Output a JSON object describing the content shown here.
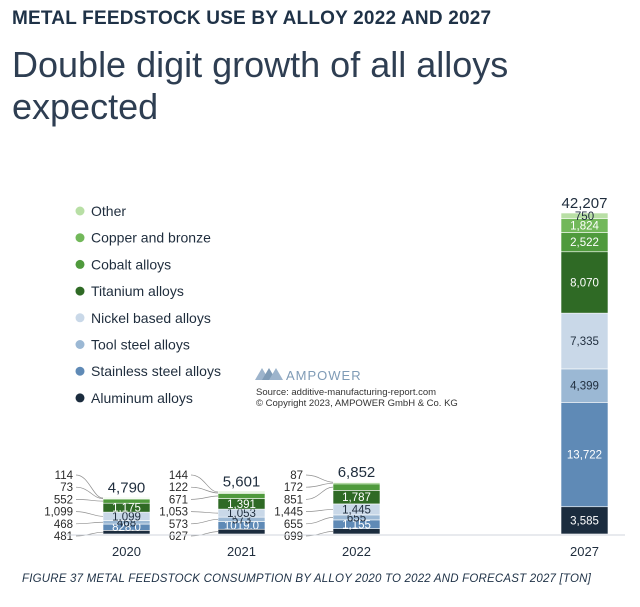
{
  "header": {
    "title": "METAL FEEDSTOCK USE BY ALLOY 2022 AND 2027",
    "subtitle": "Double digit growth of all alloys expected"
  },
  "caption": "FIGURE 37 METAL FEEDSTOCK CONSUMPTION BY ALLOY 2020 TO 2022 AND FORECAST 2027 [TON]",
  "watermark": {
    "brand": "AMPOWER",
    "source": "Source: additive-manufacturing-report.com",
    "copyright": "© Copyright 2023, AMPOWER GmbH & Co. KG"
  },
  "chart_data": {
    "type": "bar",
    "stacked": true,
    "categories": [
      "2020",
      "2021",
      "2022",
      "2027"
    ],
    "legend_position": "left",
    "grid": false,
    "ylim": [
      0,
      42207
    ],
    "totals": [
      "4,790",
      "5,601",
      "6,852",
      "42,207"
    ],
    "series": [
      {
        "name": "Aluminum alloys",
        "color": "#1b2c3e",
        "values": [
          481,
          627,
          699,
          3585
        ],
        "labels": [
          "481",
          "627",
          "699",
          "3,585"
        ]
      },
      {
        "name": "Stainless steel alloys",
        "color": "#5f8ab6",
        "values": [
          828,
          1019,
          1155,
          13722
        ],
        "labels": [
          "828.0",
          "1019.0",
          "1,155",
          "13,722"
        ]
      },
      {
        "name": "Tool steel alloys",
        "color": "#9bb8d4",
        "values": [
          468,
          573,
          655,
          4399
        ],
        "labels": [
          "468",
          "573",
          "655",
          "4,399"
        ]
      },
      {
        "name": "Nickel based alloys",
        "color": "#c9d8e8",
        "values": [
          1099,
          1053,
          1445,
          7335
        ],
        "labels": [
          "1,099",
          "1,053",
          "1,445",
          "7,335"
        ]
      },
      {
        "name": "Titanium alloys",
        "color": "#2f6a25",
        "values": [
          1175,
          1391,
          1787,
          8070
        ],
        "labels": [
          "1,175",
          "1,391",
          "1,787",
          "8,070"
        ]
      },
      {
        "name": "Cobalt alloys",
        "color": "#4f9a3c",
        "values": [
          552,
          671,
          851,
          2522
        ],
        "labels": [
          "552",
          "671",
          "851",
          "2,522"
        ]
      },
      {
        "name": "Copper and bronze",
        "color": "#72b85a",
        "values": [
          73,
          122,
          172,
          1824
        ],
        "labels": [
          "73",
          "122",
          "172",
          "1,824"
        ]
      },
      {
        "name": "Other",
        "color": "#b8dfa5",
        "values": [
          114,
          144,
          87,
          750
        ],
        "labels": [
          "114",
          "144",
          "87",
          "750"
        ]
      }
    ]
  }
}
